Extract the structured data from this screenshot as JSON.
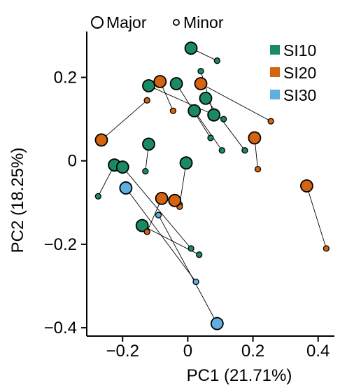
{
  "chart_data": {
    "type": "scatter",
    "title": "",
    "xlabel": "PC1 (21.71%)",
    "ylabel": "PC2 (18.25%)",
    "xlim": [
      -0.31,
      0.45
    ],
    "ylim": [
      -0.42,
      0.31
    ],
    "xticks": [
      -0.2,
      0,
      0.2,
      0.4
    ],
    "xtick_labels": [
      "−0.2",
      "0",
      "0.2",
      "0.4"
    ],
    "yticks": [
      -0.4,
      -0.2,
      0,
      0.2
    ],
    "ytick_labels": [
      "−0.4",
      "−0.2",
      "0",
      "0.2"
    ],
    "grid": false,
    "size_legend": {
      "major_label": "Major",
      "minor_label": "Minor",
      "placement": "top"
    },
    "legend": {
      "placement": "top-right",
      "entries": [
        {
          "name": "SI10",
          "color": "#1a8a64"
        },
        {
          "name": "SI20",
          "color": "#d4640f"
        },
        {
          "name": "SI30",
          "color": "#5fb0e0"
        }
      ]
    },
    "pairs": [
      {
        "group": "SI10",
        "major": [
          0.01,
          0.27
        ],
        "minor": [
          0.09,
          0.24
        ]
      },
      {
        "group": "SI10",
        "major": [
          -0.12,
          0.18
        ],
        "minor": [
          0.11,
          0.1
        ]
      },
      {
        "group": "SI10",
        "major": [
          -0.035,
          0.185
        ],
        "minor": [
          0.07,
          0.055
        ]
      },
      {
        "group": "SI10",
        "major": [
          0.055,
          0.15
        ],
        "minor": [
          0.175,
          0.025
        ]
      },
      {
        "group": "SI10",
        "major": [
          0.02,
          0.12
        ],
        "minor": [
          0.105,
          0.025
        ]
      },
      {
        "group": "SI10",
        "major": [
          0.08,
          0.11
        ],
        "minor": [
          0.04,
          0.215
        ]
      },
      {
        "group": "SI10",
        "major": [
          -0.12,
          0.04
        ],
        "minor": [
          -0.13,
          -0.025
        ]
      },
      {
        "group": "SI10",
        "major": [
          -0.005,
          -0.005
        ],
        "minor": [
          -0.025,
          -0.105
        ]
      },
      {
        "group": "SI10",
        "major": [
          -0.225,
          -0.01
        ],
        "minor": [
          -0.275,
          -0.085
        ]
      },
      {
        "group": "SI10",
        "major": [
          -0.2,
          -0.015
        ],
        "minor": [
          0.01,
          -0.21
        ]
      },
      {
        "group": "SI10",
        "major": [
          -0.14,
          -0.155
        ],
        "minor": [
          0.035,
          -0.225
        ]
      },
      {
        "group": "SI20",
        "major": [
          -0.085,
          0.19
        ],
        "minor": [
          -0.045,
          0.12
        ]
      },
      {
        "group": "SI20",
        "major": [
          0.04,
          0.185
        ],
        "minor": [
          0.255,
          0.095
        ]
      },
      {
        "group": "SI20",
        "major": [
          -0.265,
          0.05
        ],
        "minor": [
          -0.125,
          0.145
        ]
      },
      {
        "group": "SI20",
        "major": [
          0.205,
          0.055
        ],
        "minor": [
          0.215,
          -0.02
        ]
      },
      {
        "group": "SI20",
        "major": [
          -0.08,
          -0.09
        ],
        "minor": [
          -0.125,
          -0.17
        ]
      },
      {
        "group": "SI20",
        "major": [
          -0.04,
          -0.095
        ],
        "minor": [
          -0.025,
          -0.11
        ]
      },
      {
        "group": "SI20",
        "major": [
          0.365,
          -0.06
        ],
        "minor": [
          0.425,
          -0.21
        ]
      },
      {
        "group": "SI30",
        "major": [
          -0.19,
          -0.065
        ],
        "minor": [
          0.025,
          -0.29
        ]
      },
      {
        "group": "SI30",
        "major": [
          0.09,
          -0.39
        ],
        "minor": [
          -0.09,
          -0.13
        ]
      }
    ]
  }
}
